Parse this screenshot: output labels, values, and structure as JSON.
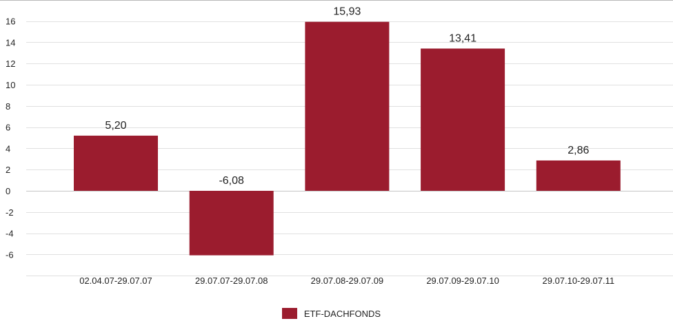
{
  "chart_data": {
    "type": "bar",
    "categories": [
      "02.04.07-29.07.07",
      "29.07.07-29.07.08",
      "29.07.08-29.07.09",
      "29.07.09-29.07.10",
      "29.07.10-29.07.11"
    ],
    "series": [
      {
        "name": "ETF-DACHFONDS",
        "values": [
          5.2,
          -6.08,
          15.93,
          13.41,
          2.86
        ],
        "labels": [
          "5,20",
          "-6,08",
          "15,93",
          "13,41",
          "2,86"
        ]
      }
    ],
    "y_ticks": [
      16,
      14,
      12,
      10,
      8,
      6,
      4,
      2,
      0,
      -2,
      -4,
      -6
    ],
    "y_tick_labels": [
      "16",
      "14",
      "12",
      "10",
      "8",
      "6",
      "4",
      "2",
      "0",
      "-2",
      "-4",
      "-6"
    ],
    "ylim": [
      -7,
      17
    ],
    "grid": true,
    "legend_position": "bottom-center",
    "bar_color": "#9b1c2e"
  }
}
